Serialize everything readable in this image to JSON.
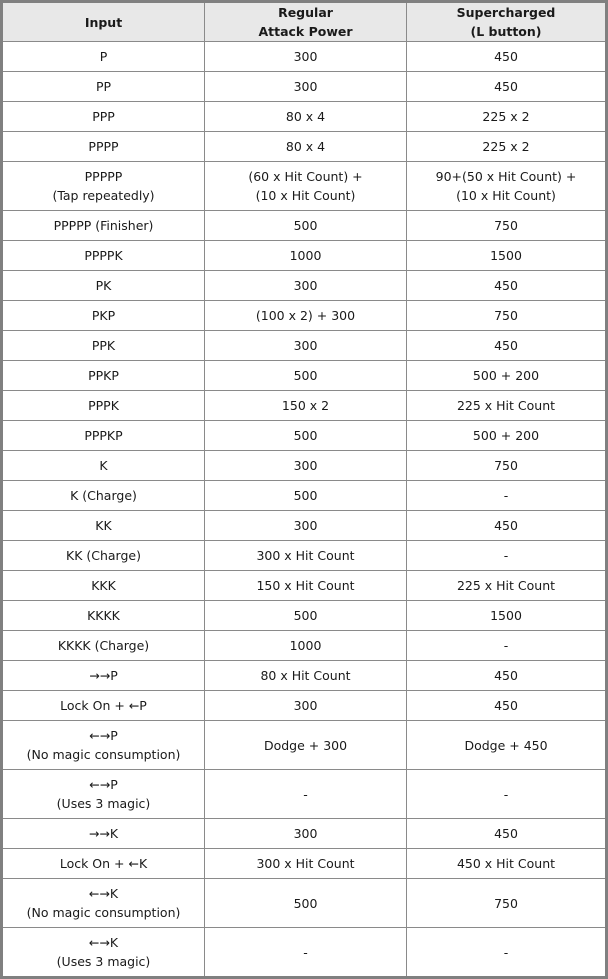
{
  "header": {
    "input": "Input",
    "regular": [
      "Regular",
      "Attack Power"
    ],
    "super": [
      "Supercharged",
      "(L button)"
    ]
  },
  "rows": [
    {
      "input": [
        "P"
      ],
      "regular": [
        "300"
      ],
      "super": [
        "450"
      ]
    },
    {
      "input": [
        "PP"
      ],
      "regular": [
        "300"
      ],
      "super": [
        "450"
      ]
    },
    {
      "input": [
        "PPP"
      ],
      "regular": [
        "80 x 4"
      ],
      "super": [
        "225 x 2"
      ]
    },
    {
      "input": [
        "PPPP"
      ],
      "regular": [
        "80 x 4"
      ],
      "super": [
        "225 x 2"
      ]
    },
    {
      "input": [
        "PPPPP",
        "(Tap repeatedly)"
      ],
      "regular": [
        "(60 x Hit Count) +",
        "(10 x Hit Count)"
      ],
      "super": [
        "90+(50 x Hit Count) +",
        "(10 x Hit Count)"
      ]
    },
    {
      "input": [
        "PPPPP (Finisher)"
      ],
      "regular": [
        "500"
      ],
      "super": [
        "750"
      ]
    },
    {
      "input": [
        "PPPPK"
      ],
      "regular": [
        "1000"
      ],
      "super": [
        "1500"
      ]
    },
    {
      "input": [
        "PK"
      ],
      "regular": [
        "300"
      ],
      "super": [
        "450"
      ]
    },
    {
      "input": [
        "PKP"
      ],
      "regular": [
        "(100 x 2) + 300"
      ],
      "super": [
        "750"
      ]
    },
    {
      "input": [
        "PPK"
      ],
      "regular": [
        "300"
      ],
      "super": [
        "450"
      ]
    },
    {
      "input": [
        "PPKP"
      ],
      "regular": [
        "500"
      ],
      "super": [
        "500 + 200"
      ]
    },
    {
      "input": [
        "PPPK"
      ],
      "regular": [
        "150 x 2"
      ],
      "super": [
        "225 x Hit Count"
      ]
    },
    {
      "input": [
        "PPPKP"
      ],
      "regular": [
        "500"
      ],
      "super": [
        "500 + 200"
      ]
    },
    {
      "input": [
        "K"
      ],
      "regular": [
        "300"
      ],
      "super": [
        "750"
      ]
    },
    {
      "input": [
        "K (Charge)"
      ],
      "regular": [
        "500"
      ],
      "super": [
        "-"
      ]
    },
    {
      "input": [
        "KK"
      ],
      "regular": [
        "300"
      ],
      "super": [
        "450"
      ]
    },
    {
      "input": [
        "KK (Charge)"
      ],
      "regular": [
        "300 x Hit Count"
      ],
      "super": [
        "-"
      ]
    },
    {
      "input": [
        "KKK"
      ],
      "regular": [
        "150 x Hit Count"
      ],
      "super": [
        "225 x Hit Count"
      ]
    },
    {
      "input": [
        "KKKK"
      ],
      "regular": [
        "500"
      ],
      "super": [
        "1500"
      ]
    },
    {
      "input": [
        "KKKK (Charge)"
      ],
      "regular": [
        "1000"
      ],
      "super": [
        "-"
      ]
    },
    {
      "input": [
        "→→P"
      ],
      "regular": [
        "80 x Hit Count"
      ],
      "super": [
        "450"
      ]
    },
    {
      "input": [
        "Lock On + ←P"
      ],
      "regular": [
        "300"
      ],
      "super": [
        "450"
      ]
    },
    {
      "input": [
        "←→P",
        "(No magic consumption)"
      ],
      "regular": [
        "Dodge + 300"
      ],
      "super": [
        "Dodge + 450"
      ]
    },
    {
      "input": [
        "←→P",
        "(Uses 3 magic)"
      ],
      "regular": [
        "-"
      ],
      "super": [
        "-"
      ]
    },
    {
      "input": [
        "→→K"
      ],
      "regular": [
        "300"
      ],
      "super": [
        "450"
      ]
    },
    {
      "input": [
        "Lock On + ←K"
      ],
      "regular": [
        "300 x Hit Count"
      ],
      "super": [
        "450 x Hit Count"
      ]
    },
    {
      "input": [
        "←→K",
        "(No magic consumption)"
      ],
      "regular": [
        "500"
      ],
      "super": [
        "750"
      ]
    },
    {
      "input": [
        "←→K",
        "(Uses 3 magic)"
      ],
      "regular": [
        "-"
      ],
      "super": [
        "-"
      ]
    }
  ]
}
